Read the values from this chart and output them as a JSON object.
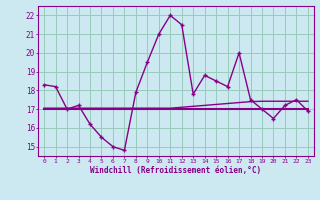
{
  "xlabel": "Windchill (Refroidissement éolien,°C)",
  "background_color": "#cce8f0",
  "grid_color": "#99ccbb",
  "line_color": "#880088",
  "x_values": [
    0,
    1,
    2,
    3,
    4,
    5,
    6,
    7,
    8,
    9,
    10,
    11,
    12,
    13,
    14,
    15,
    16,
    17,
    18,
    19,
    20,
    21,
    22,
    23
  ],
  "y_main": [
    18.3,
    18.2,
    17.0,
    17.2,
    16.2,
    15.5,
    15.0,
    14.8,
    17.9,
    19.5,
    21.0,
    22.0,
    21.5,
    17.8,
    18.8,
    18.5,
    18.2,
    20.0,
    17.5,
    17.0,
    16.5,
    17.2,
    17.5,
    16.9
  ],
  "y_flat1": [
    17.0,
    17.0,
    17.0,
    17.0,
    17.0,
    17.0,
    17.0,
    17.0,
    17.0,
    17.0,
    17.0,
    17.0,
    17.0,
    17.0,
    17.0,
    17.0,
    17.0,
    17.0,
    17.0,
    17.0,
    17.0,
    17.0,
    17.0,
    17.0
  ],
  "y_flat2": [
    17.05,
    17.05,
    17.05,
    17.05,
    17.05,
    17.05,
    17.05,
    17.05,
    17.05,
    17.05,
    17.05,
    17.05,
    17.1,
    17.15,
    17.2,
    17.25,
    17.3,
    17.35,
    17.4,
    17.42,
    17.42,
    17.42,
    17.42,
    17.42
  ],
  "ylim": [
    14.5,
    22.5
  ],
  "yticks": [
    15,
    16,
    17,
    18,
    19,
    20,
    21,
    22
  ]
}
